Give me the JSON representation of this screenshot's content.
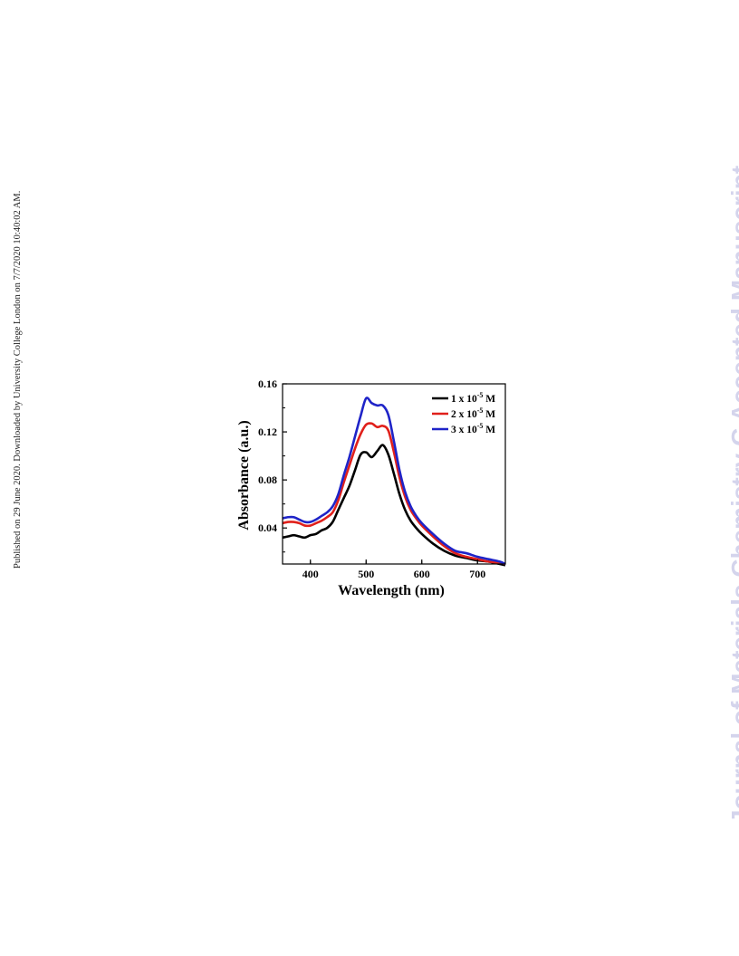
{
  "side_note": "Published on 29 June 2020. Downloaded by University College London on 7/7/2020 10:40:02 AM.",
  "watermark": "Journal of Materials Chemistry C Accepted Manuscript",
  "chart_data": {
    "type": "line",
    "xlabel": "Wavelength (nm)",
    "ylabel": "Absorbance (a.u.)",
    "xlim": [
      350,
      750
    ],
    "ylim": [
      0.01,
      0.16
    ],
    "xticks": [
      400,
      500,
      600,
      700
    ],
    "yticks": [
      0.04,
      0.08,
      0.12,
      0.16
    ],
    "xtick_labels": [
      "400",
      "500",
      "600",
      "700"
    ],
    "ytick_labels": [
      "0.04",
      "0.08",
      "0.12",
      "0.16"
    ],
    "grid": false,
    "legend_position": "top-right",
    "x": [
      350,
      360,
      370,
      380,
      390,
      400,
      410,
      420,
      430,
      440,
      450,
      460,
      470,
      480,
      490,
      500,
      510,
      520,
      530,
      540,
      550,
      560,
      570,
      580,
      590,
      600,
      620,
      640,
      660,
      680,
      700,
      720,
      740,
      750
    ],
    "series": [
      {
        "name": "1 x 10-5 M",
        "color": "#000000",
        "values": [
          0.032,
          0.033,
          0.034,
          0.033,
          0.032,
          0.034,
          0.035,
          0.038,
          0.04,
          0.045,
          0.055,
          0.065,
          0.075,
          0.088,
          0.101,
          0.103,
          0.099,
          0.104,
          0.109,
          0.101,
          0.085,
          0.068,
          0.055,
          0.046,
          0.04,
          0.035,
          0.027,
          0.021,
          0.017,
          0.015,
          0.013,
          0.012,
          0.01,
          0.009
        ]
      },
      {
        "name": "2 x 10-5 M",
        "color": "#e0201b",
        "values": [
          0.044,
          0.045,
          0.045,
          0.044,
          0.042,
          0.042,
          0.044,
          0.046,
          0.049,
          0.053,
          0.063,
          0.078,
          0.092,
          0.106,
          0.118,
          0.126,
          0.127,
          0.124,
          0.125,
          0.121,
          0.103,
          0.082,
          0.066,
          0.055,
          0.048,
          0.042,
          0.033,
          0.025,
          0.019,
          0.016,
          0.014,
          0.012,
          0.011,
          0.01
        ]
      },
      {
        "name": "3 x 10-5 M",
        "color": "#1f24c8",
        "values": [
          0.048,
          0.049,
          0.049,
          0.047,
          0.045,
          0.045,
          0.047,
          0.05,
          0.053,
          0.058,
          0.068,
          0.084,
          0.099,
          0.116,
          0.133,
          0.148,
          0.144,
          0.142,
          0.142,
          0.134,
          0.112,
          0.088,
          0.07,
          0.058,
          0.05,
          0.044,
          0.035,
          0.027,
          0.021,
          0.019,
          0.016,
          0.014,
          0.012,
          0.01
        ]
      }
    ]
  }
}
